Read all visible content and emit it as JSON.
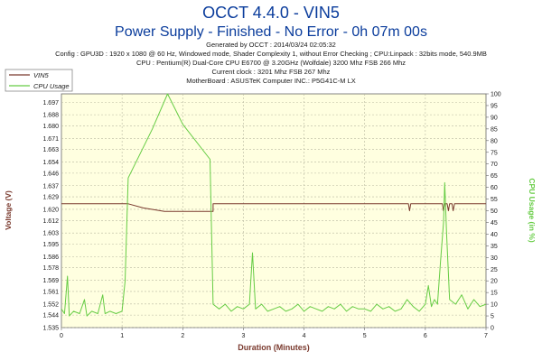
{
  "header": {
    "title": "OCCT 4.4.0 - VIN5",
    "subtitle": "Power Supply - Finished - No Error - 0h 07m 00s",
    "info_lines": [
      "Generated by OCCT : 2014/03/24 02:05:32",
      "Config : GPU3D : 1920 x 1080 @ 60 Hz, Windowed mode, Shader Complexity 1, without Error Checking ; CPU:Linpack : 32bits mode, 540.9MB",
      "CPU : Pentium(R) Dual-Core CPU E6700 @ 3.20GHz (Wolfdale) 3200 Mhz FSB 266 Mhz",
      "Current clock : 3201 Mhz FSB 267 Mhz",
      "MotherBoard : ASUSTeK Computer INC.: P5G41C-M LX"
    ]
  },
  "colors": {
    "title": "#0a3c9c",
    "info": "#1a1a1a",
    "voltage": "#7a3a2e",
    "cpu": "#66cc44",
    "plot_bg": "#ffffe0",
    "grid": "#b8b8a0"
  },
  "chart_data": {
    "type": "line",
    "xlabel": "Duration (Minutes)",
    "ylabel_left": "Voltage (V)",
    "ylabel_right": "CPU Usage (in %)",
    "xlim": [
      0,
      7
    ],
    "ylim_left": [
      1.535,
      1.703
    ],
    "ylim_right": [
      0,
      100
    ],
    "x_ticks": [
      0,
      1,
      2,
      3,
      4,
      5,
      6,
      7
    ],
    "y_ticks_left": [
      "1.535",
      "1.544",
      "1.552",
      "1.561",
      "1.569",
      "1.578",
      "1.586",
      "1.595",
      "1.603",
      "1.612",
      "1.620",
      "1.629",
      "1.637",
      "1.646",
      "1.654",
      "1.663",
      "1.671",
      "1.680",
      "1.688",
      "1.697"
    ],
    "y_ticks_right": [
      0,
      5,
      10,
      15,
      20,
      25,
      30,
      35,
      40,
      45,
      50,
      55,
      60,
      65,
      70,
      75,
      80,
      85,
      90,
      95,
      100
    ],
    "grid": true,
    "legend": "top-left",
    "series": [
      {
        "name": "VIN5",
        "axis": "left",
        "points": [
          [
            0,
            1.624
          ],
          [
            1.1,
            1.624
          ],
          [
            1.35,
            1.621
          ],
          [
            1.7,
            1.6185
          ],
          [
            2.45,
            1.6185
          ],
          [
            2.5,
            1.6185
          ],
          [
            2.5,
            1.624
          ],
          [
            5.72,
            1.624
          ],
          [
            5.74,
            1.619
          ],
          [
            5.76,
            1.624
          ],
          [
            6.28,
            1.624
          ],
          [
            6.3,
            1.619
          ],
          [
            6.32,
            1.624
          ],
          [
            6.36,
            1.624
          ],
          [
            6.38,
            1.619
          ],
          [
            6.4,
            1.624
          ],
          [
            6.44,
            1.624
          ],
          [
            6.46,
            1.619
          ],
          [
            6.48,
            1.624
          ],
          [
            7.0,
            1.624
          ]
        ]
      },
      {
        "name": "CPU Usage",
        "axis": "right",
        "points": [
          [
            0,
            8
          ],
          [
            0.05,
            6
          ],
          [
            0.1,
            22
          ],
          [
            0.13,
            5
          ],
          [
            0.2,
            7
          ],
          [
            0.3,
            6
          ],
          [
            0.38,
            12
          ],
          [
            0.42,
            5
          ],
          [
            0.5,
            7
          ],
          [
            0.6,
            6
          ],
          [
            0.68,
            14
          ],
          [
            0.72,
            6
          ],
          [
            0.8,
            7
          ],
          [
            0.9,
            6
          ],
          [
            1.0,
            7
          ],
          [
            1.05,
            20
          ],
          [
            1.1,
            64
          ],
          [
            1.5,
            85
          ],
          [
            1.75,
            100
          ],
          [
            2.0,
            87
          ],
          [
            2.45,
            72
          ],
          [
            2.5,
            10
          ],
          [
            2.6,
            8
          ],
          [
            2.7,
            10
          ],
          [
            2.8,
            7
          ],
          [
            2.9,
            9
          ],
          [
            3.0,
            8
          ],
          [
            3.1,
            10
          ],
          [
            3.15,
            32
          ],
          [
            3.2,
            8
          ],
          [
            3.3,
            10
          ],
          [
            3.4,
            7
          ],
          [
            3.5,
            8
          ],
          [
            3.6,
            9
          ],
          [
            3.7,
            7
          ],
          [
            3.8,
            8
          ],
          [
            3.9,
            10
          ],
          [
            4.0,
            7
          ],
          [
            4.1,
            9
          ],
          [
            4.2,
            8
          ],
          [
            4.3,
            7
          ],
          [
            4.4,
            9
          ],
          [
            4.5,
            8
          ],
          [
            4.6,
            10
          ],
          [
            4.7,
            7
          ],
          [
            4.8,
            9
          ],
          [
            4.9,
            8
          ],
          [
            5.0,
            8
          ],
          [
            5.1,
            7
          ],
          [
            5.2,
            10
          ],
          [
            5.3,
            8
          ],
          [
            5.4,
            9
          ],
          [
            5.5,
            7
          ],
          [
            5.6,
            8
          ],
          [
            5.7,
            12
          ],
          [
            5.8,
            9
          ],
          [
            5.9,
            7
          ],
          [
            6.0,
            10
          ],
          [
            6.05,
            18
          ],
          [
            6.1,
            9
          ],
          [
            6.15,
            12
          ],
          [
            6.2,
            10
          ],
          [
            6.25,
            28
          ],
          [
            6.3,
            45
          ],
          [
            6.32,
            62
          ],
          [
            6.35,
            40
          ],
          [
            6.4,
            12
          ],
          [
            6.5,
            10
          ],
          [
            6.6,
            14
          ],
          [
            6.7,
            8
          ],
          [
            6.8,
            12
          ],
          [
            6.9,
            9
          ],
          [
            7.0,
            10
          ]
        ]
      }
    ]
  }
}
